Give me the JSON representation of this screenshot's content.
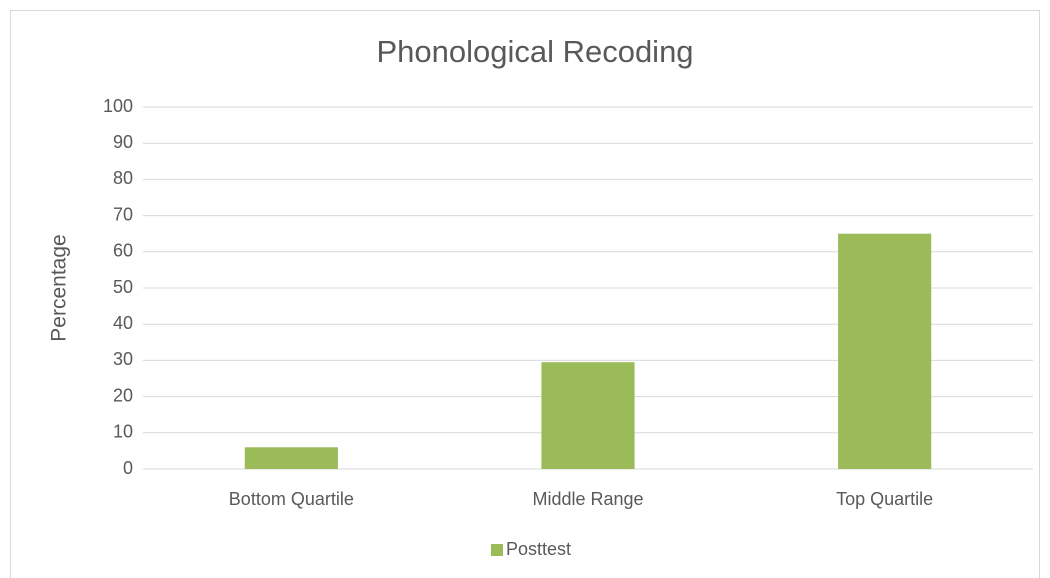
{
  "chart_data": {
    "type": "bar",
    "title": "Phonological Recoding",
    "y_label": "Percentage",
    "categories": [
      "Bottom Quartile",
      "Middle Range",
      "Top Quartile"
    ],
    "series": [
      {
        "name": "Posttest",
        "color": "#9bbb59",
        "values": [
          6,
          29.5,
          65
        ]
      }
    ],
    "ylim": [
      0,
      100
    ],
    "yticks": [
      0,
      10,
      20,
      30,
      40,
      50,
      60,
      70,
      80,
      90,
      100
    ],
    "grid": true,
    "legend": "bottom"
  }
}
